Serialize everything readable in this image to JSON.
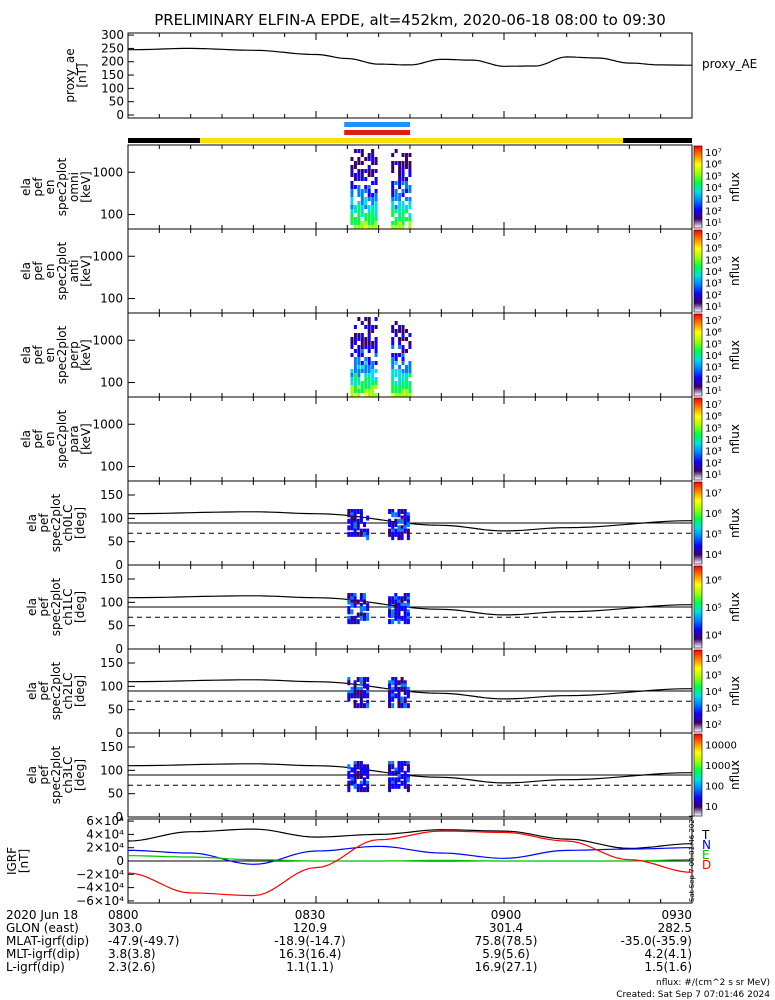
{
  "title": "PRELIMINARY ELFIN-A EPDE, alt=452km, 2020-06-18 08:00 to 09:30",
  "colors": {
    "ae": "#000000",
    "blue_bar": "#1e90ff",
    "red_bar": "#e31a1c",
    "yellow_bar": "#ffe000",
    "black_bar": "#000000",
    "grf_total": "#000000",
    "grf_n": "#0000ff",
    "grf_e": "#00c000",
    "grf_d": "#ff0000"
  },
  "chart_data": [
    {
      "type": "line",
      "panel": "proxy_ae",
      "ylabel": [
        "proxy_ae",
        "[nT]"
      ],
      "legend": "proxy_AE",
      "ylim": [
        0,
        300
      ],
      "yticks": [
        "0",
        "50",
        "100",
        "150",
        "200",
        "250",
        "300"
      ],
      "x_minutes": [
        0,
        10,
        20,
        30,
        35,
        40,
        45,
        50,
        55,
        60,
        65,
        70,
        75,
        80,
        85,
        90
      ],
      "values": [
        245,
        250,
        243,
        227,
        212,
        191,
        188,
        209,
        206,
        183,
        184,
        218,
        214,
        195,
        188,
        187
      ]
    },
    {
      "type": "heatmap",
      "panel": "omni",
      "ylabel": [
        "ela",
        "pef",
        "en",
        "spec2plot",
        "omni",
        "[keV]"
      ],
      "yticks": [
        "100",
        "1000"
      ],
      "colorbar": {
        "label": "nflux",
        "ticks": [
          "10¹",
          "10²",
          "10³",
          "10⁴",
          "10⁵",
          "10⁶",
          "10⁷"
        ]
      }
    },
    {
      "type": "heatmap",
      "panel": "anti",
      "ylabel": [
        "ela",
        "pef",
        "en",
        "spec2plot",
        "anti",
        "[keV]"
      ],
      "yticks": [
        "100",
        "1000"
      ],
      "colorbar": {
        "label": "nflux",
        "ticks": [
          "10¹",
          "10²",
          "10³",
          "10⁴",
          "10⁵",
          "10⁶",
          "10⁷"
        ]
      }
    },
    {
      "type": "heatmap",
      "panel": "perp",
      "ylabel": [
        "ela",
        "pef",
        "en",
        "spec2plot",
        "perp",
        "[keV]"
      ],
      "yticks": [
        "100",
        "1000"
      ],
      "colorbar": {
        "label": "nflux",
        "ticks": [
          "10¹",
          "10²",
          "10³",
          "10⁴",
          "10⁵",
          "10⁶",
          "10⁷"
        ]
      }
    },
    {
      "type": "heatmap",
      "panel": "para",
      "ylabel": [
        "ela",
        "pef",
        "en",
        "spec2plot",
        "para",
        "[keV]"
      ],
      "yticks": [
        "100",
        "1000"
      ],
      "colorbar": {
        "label": "nflux",
        "ticks": [
          "10¹",
          "10²",
          "10³",
          "10⁴",
          "10⁵",
          "10⁶",
          "10⁷"
        ]
      }
    },
    {
      "type": "heatmap",
      "panel": "ch0LC",
      "ylabel": [
        "ela",
        "pef",
        "spec2plot",
        "ch0LC",
        "[deg]"
      ],
      "ylim": [
        0,
        180
      ],
      "yticks": [
        "0",
        "50",
        "100",
        "150"
      ],
      "colorbar": {
        "label": "nflux",
        "ticks": [
          "10⁴",
          "10⁵",
          "10⁶",
          "10⁷"
        ]
      }
    },
    {
      "type": "heatmap",
      "panel": "ch1LC",
      "ylabel": [
        "ela",
        "pef",
        "spec2plot",
        "ch1LC",
        "[deg]"
      ],
      "ylim": [
        0,
        180
      ],
      "yticks": [
        "0",
        "50",
        "100",
        "150"
      ],
      "colorbar": {
        "label": "nflux",
        "ticks": [
          "10⁴",
          "10⁵",
          "10⁶"
        ]
      }
    },
    {
      "type": "heatmap",
      "panel": "ch2LC",
      "ylabel": [
        "ela",
        "pef",
        "spec2plot",
        "ch2LC",
        "[deg]"
      ],
      "ylim": [
        0,
        180
      ],
      "yticks": [
        "0",
        "50",
        "100",
        "150"
      ],
      "colorbar": {
        "label": "nflux",
        "ticks": [
          "10²",
          "10³",
          "10⁴",
          "10⁵",
          "10⁶"
        ]
      }
    },
    {
      "type": "heatmap",
      "panel": "ch3LC",
      "ylabel": [
        "ela",
        "pef",
        "spec2plot",
        "ch3LC",
        "[deg]"
      ],
      "ylim": [
        0,
        180
      ],
      "yticks": [
        "0",
        "50",
        "100",
        "150"
      ],
      "colorbar": {
        "label": "nflux",
        "ticks": [
          "10",
          "100",
          "1000",
          "10000"
        ]
      }
    },
    {
      "type": "line",
      "panel": "igrf",
      "ylabel": [
        "IGRF",
        "[nT]"
      ],
      "ylim": [
        -60000,
        60000
      ],
      "yticks": [
        "−6×10⁴",
        "−4×10⁴",
        "−2×10⁴",
        "0",
        "2×10⁴",
        "4×10⁴",
        "6×10⁴"
      ],
      "legend": [
        "T",
        "N",
        "E",
        "D"
      ],
      "x_minutes": [
        0,
        10,
        20,
        30,
        40,
        50,
        60,
        70,
        80,
        90
      ],
      "series": [
        {
          "name": "T",
          "values": [
            30000,
            44000,
            48000,
            36000,
            40000,
            47000,
            45000,
            33000,
            19000,
            26000
          ]
        },
        {
          "name": "N",
          "values": [
            16000,
            12000,
            -5000,
            15000,
            22000,
            12000,
            4000,
            16000,
            18000,
            20000
          ]
        },
        {
          "name": "E",
          "values": [
            8000,
            6000,
            2000,
            0,
            0,
            1000,
            0,
            0,
            0,
            2000
          ]
        },
        {
          "name": "D",
          "values": [
            -18000,
            -48000,
            -52000,
            -10000,
            32000,
            45000,
            43000,
            30000,
            2000,
            -17000
          ]
        }
      ]
    }
  ],
  "time_ticks": [
    "0800",
    "0830",
    "0900",
    "0930"
  ],
  "ephemeris": [
    {
      "label": "2020 Jun 18",
      "values": [
        "0800",
        "0830",
        "0900",
        "0930"
      ]
    },
    {
      "label": "GLON (east)",
      "values": [
        "303.0",
        "120.9",
        "301.4",
        "282.5"
      ]
    },
    {
      "label": "MLAT-igrf(dip)",
      "values": [
        "-47.9(-49.7)",
        "-18.9(-14.7)",
        "75.8(78.5)",
        "-35.0(-35.9)"
      ]
    },
    {
      "label": "MLT-igrf(dip)",
      "values": [
        "3.8(3.8)",
        "16.3(16.4)",
        "5.9(5.6)",
        "4.2(4.1)"
      ]
    },
    {
      "label": "L-igrf(dip)",
      "values": [
        "2.3(2.6)",
        "1.1(1.1)",
        "16.9(27.1)",
        "1.5(1.6)"
      ]
    }
  ],
  "footer": {
    "units": "nflux: #/(cm^2 s sr MeV)",
    "created": "Created: Sat Sep  7 07:01:46 2024",
    "side_stamp": "Sat Sep  7 00:01:46 2024"
  }
}
